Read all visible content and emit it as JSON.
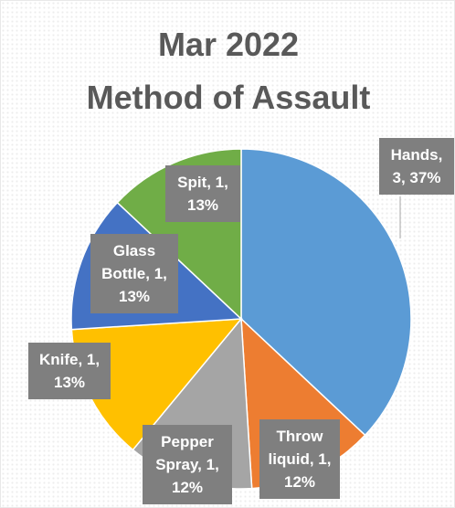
{
  "chart_data": {
    "type": "pie",
    "title_lines": [
      "Mar 2022",
      "Method of Assault"
    ],
    "legend": false,
    "slices": [
      {
        "label": "Hands",
        "value": 3,
        "percent": "37%",
        "color": "#5b9bd5",
        "data_label": "Hands,\n3, 37%"
      },
      {
        "label": "Throw liquid",
        "value": 1,
        "percent": "12%",
        "color": "#ed7d31",
        "data_label": "Throw\nliquid, 1,\n12%"
      },
      {
        "label": "Pepper Spray",
        "value": 1,
        "percent": "12%",
        "color": "#a5a5a5",
        "data_label": "Pepper\nSpray, 1,\n12%"
      },
      {
        "label": "Knife",
        "value": 1,
        "percent": "13%",
        "color": "#ffc000",
        "data_label": "Knife, 1,\n13%"
      },
      {
        "label": "Glass Bottle",
        "value": 1,
        "percent": "13%",
        "color": "#4472c4",
        "data_label": "Glass\nBottle, 1,\n13%"
      },
      {
        "label": "Spit",
        "value": 1,
        "percent": "13%",
        "color": "#70ad47",
        "data_label": "Spit, 1,\n13%"
      }
    ]
  }
}
